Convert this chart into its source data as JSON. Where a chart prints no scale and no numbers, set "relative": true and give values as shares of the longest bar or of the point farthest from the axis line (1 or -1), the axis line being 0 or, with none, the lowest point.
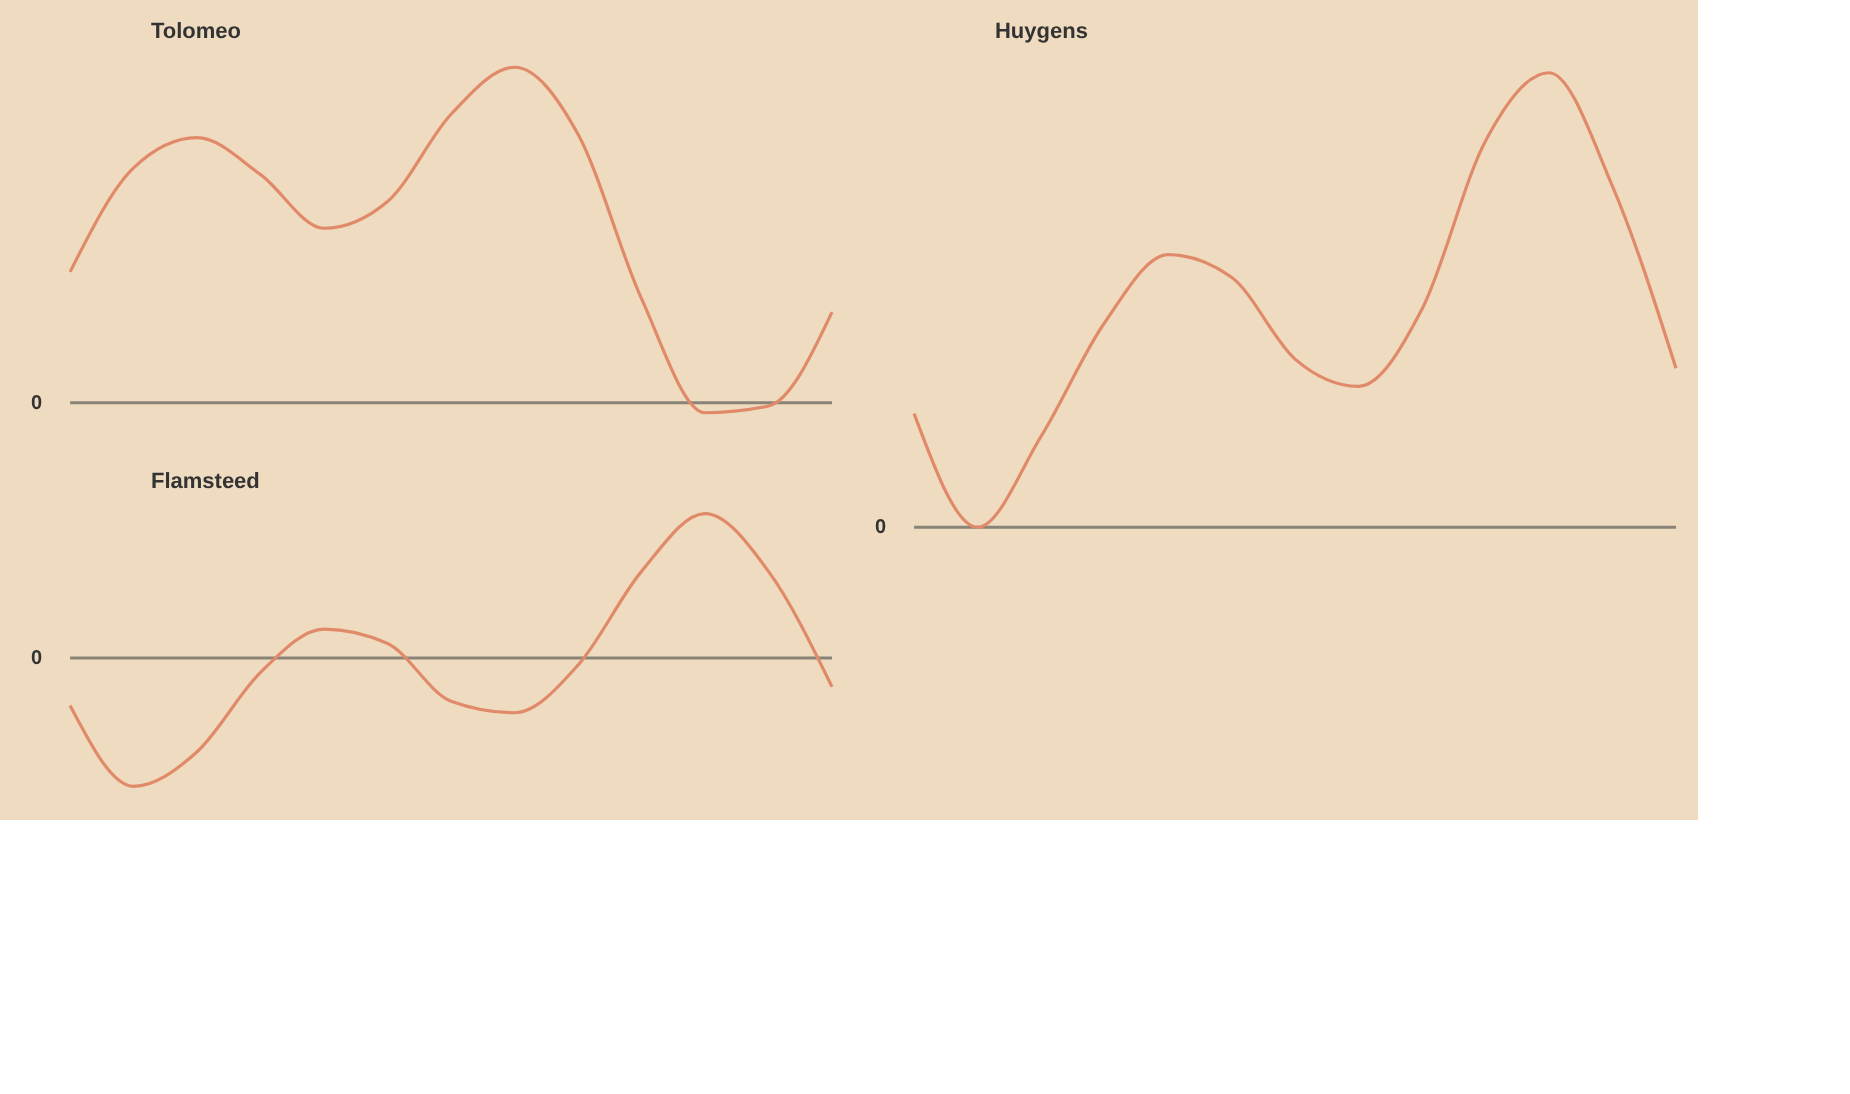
{
  "chart_data": [
    {
      "type": "line",
      "title": "Tolomeo",
      "relative": true,
      "categories": [
        null,
        null,
        null,
        null,
        null,
        null,
        null,
        null,
        null,
        null,
        null,
        null,
        null
      ],
      "series": [
        {
          "color": "#e08a6a",
          "values": [
            0.39,
            0.7,
            0.79,
            0.68,
            0.52,
            0.6,
            0.86,
            1.0,
            0.8,
            0.31,
            -0.03,
            -0.01,
            0.27
          ]
        }
      ],
      "ref_lines": [
        {
          "axis": "y",
          "value": 0,
          "label": "0",
          "color": "#8a8478"
        }
      ]
    },
    {
      "type": "line",
      "title": "Flamsteed",
      "relative": true,
      "categories": [
        null,
        null,
        null,
        null,
        null,
        null,
        null,
        null,
        null,
        null,
        null,
        null,
        null
      ],
      "series": [
        {
          "color": "#e08a6a",
          "values": [
            -0.33,
            -0.89,
            -0.65,
            -0.1,
            0.2,
            0.1,
            -0.3,
            -0.38,
            -0.05,
            0.6,
            1.0,
            0.6,
            -0.2
          ]
        }
      ],
      "ref_lines": [
        {
          "axis": "y",
          "value": 0,
          "label": "0",
          "color": "#8a8478"
        }
      ]
    },
    {
      "type": "line",
      "title": "Huygens",
      "relative": true,
      "categories": [
        null,
        null,
        null,
        null,
        null,
        null,
        null,
        null,
        null,
        null,
        null,
        null,
        null
      ],
      "series": [
        {
          "color": "#e08a6a",
          "values": [
            0.25,
            0.0,
            0.2,
            0.45,
            0.6,
            0.55,
            0.37,
            0.31,
            0.48,
            0.85,
            1.0,
            0.75,
            0.35
          ]
        }
      ],
      "ref_lines": [
        {
          "axis": "y",
          "value": 0,
          "label": "0",
          "color": "#8a8478"
        }
      ]
    }
  ]
}
